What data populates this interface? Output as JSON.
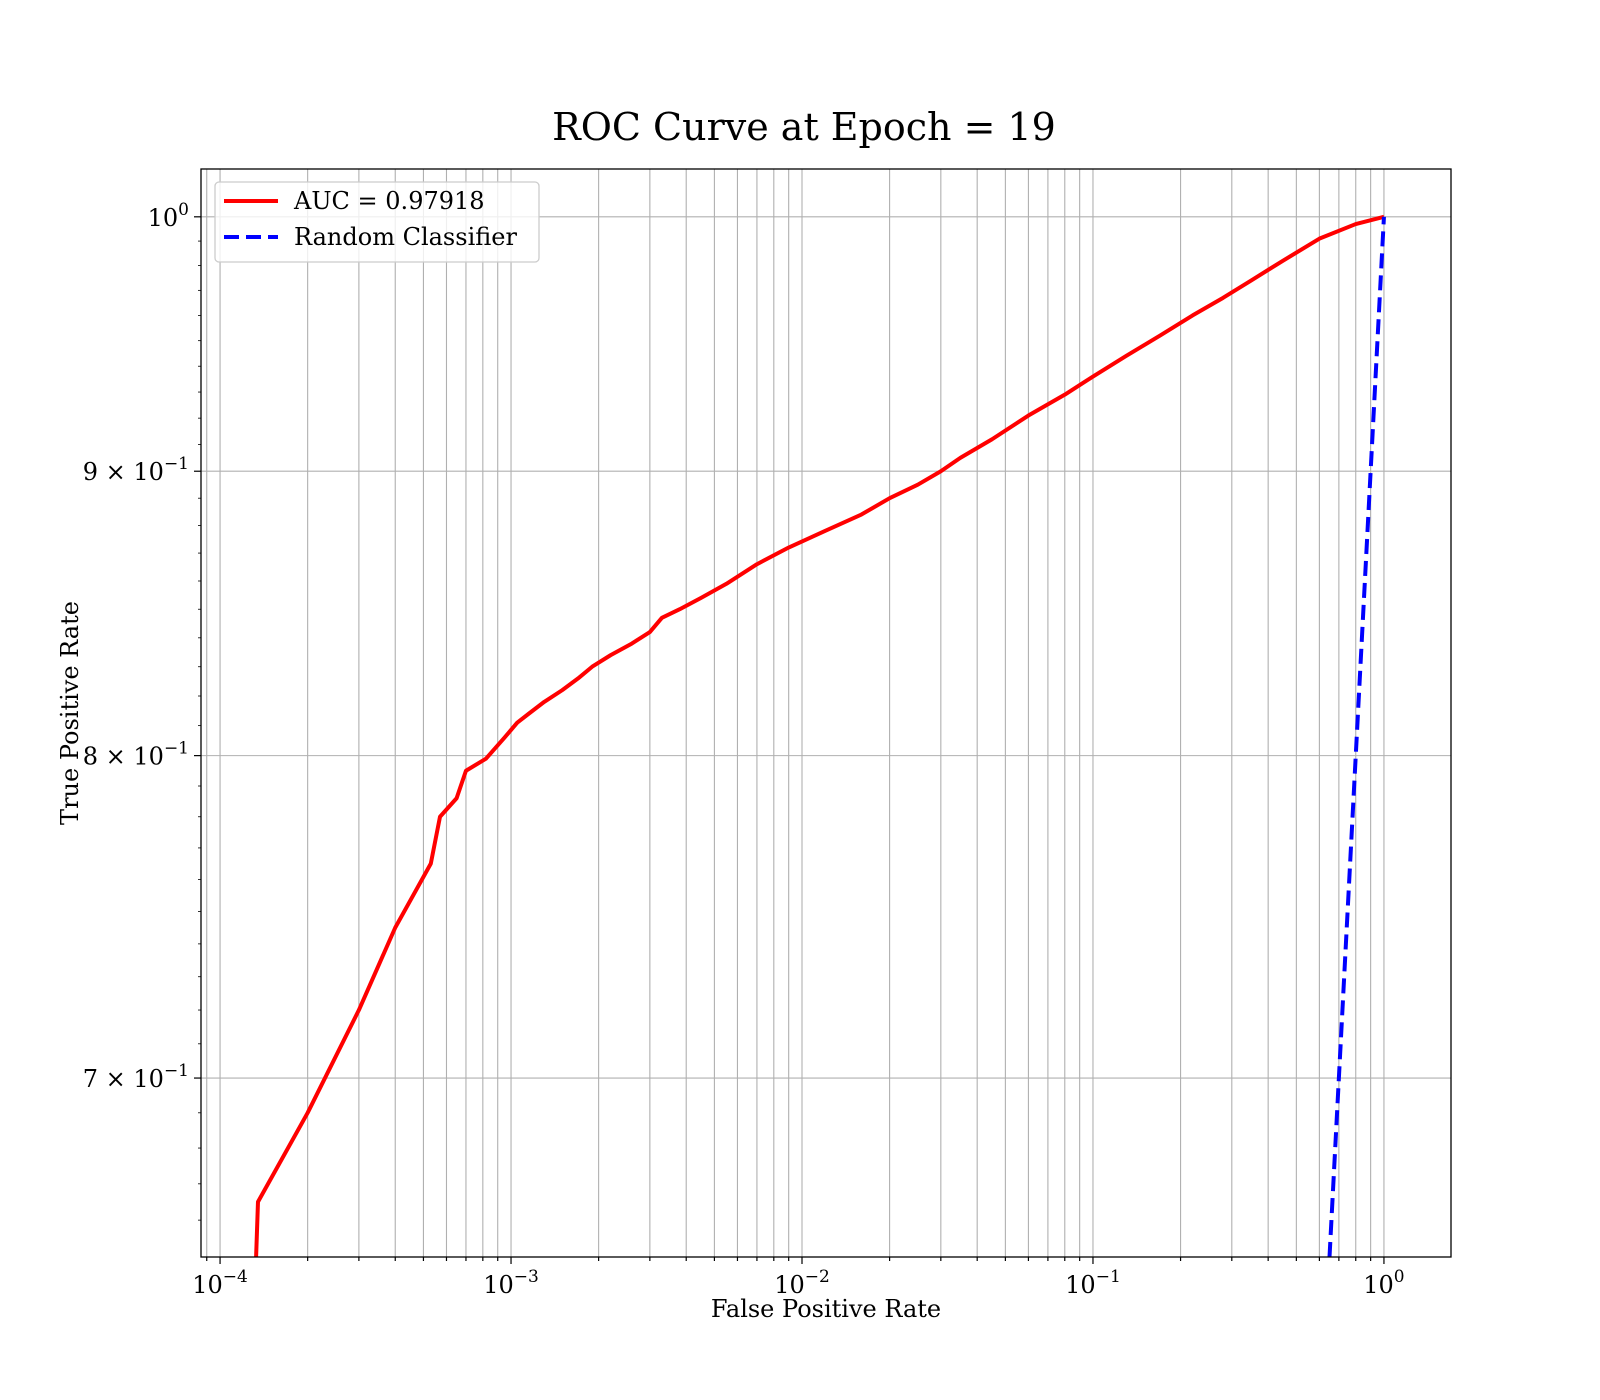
{
  "chart_data": {
    "type": "line",
    "title": "ROC Curve at Epoch = 19",
    "xlabel": "False Positive Rate",
    "ylabel": "True Positive Rate",
    "xscale": "log",
    "yscale": "log",
    "xlim": [
      8.6e-05,
      1.7
    ],
    "ylim": [
      0.65,
      1.02
    ],
    "grid": true,
    "legend_position": "top-left",
    "x_ticks": [
      {
        "value": 0.0001,
        "base": "10",
        "exp": "−4"
      },
      {
        "value": 0.001,
        "base": "10",
        "exp": "−3"
      },
      {
        "value": 0.01,
        "base": "10",
        "exp": "−2"
      },
      {
        "value": 0.1,
        "base": "10",
        "exp": "−1"
      },
      {
        "value": 1,
        "base": "10",
        "exp": "0"
      }
    ],
    "y_ticks": [
      {
        "value": 1.0,
        "base": "10",
        "exp": "0"
      },
      {
        "value": 0.9,
        "base": "9 × 10",
        "exp": "−1"
      },
      {
        "value": 0.8,
        "base": "8 × 10",
        "exp": "−1"
      },
      {
        "value": 0.7,
        "base": "7 × 10",
        "exp": "−1"
      }
    ],
    "series": [
      {
        "name": "AUC = 0.97918",
        "color": "#ff0000",
        "dash": "solid",
        "x": [
          0.000133,
          0.000135,
          0.0002,
          0.0003,
          0.0004,
          0.00053,
          0.00057,
          0.00065,
          0.0007,
          0.00082,
          0.00095,
          0.00105,
          0.00115,
          0.0013,
          0.0015,
          0.0017,
          0.0019,
          0.0022,
          0.0026,
          0.003,
          0.0033,
          0.0038,
          0.0045,
          0.0055,
          0.007,
          0.009,
          0.012,
          0.016,
          0.02,
          0.025,
          0.03,
          0.035,
          0.045,
          0.06,
          0.08,
          0.1,
          0.13,
          0.17,
          0.22,
          0.28,
          0.35,
          0.45,
          0.6,
          0.8,
          1.0
        ],
        "y": [
          0.65,
          0.665,
          0.69,
          0.72,
          0.745,
          0.765,
          0.78,
          0.786,
          0.795,
          0.799,
          0.806,
          0.811,
          0.814,
          0.818,
          0.822,
          0.826,
          0.83,
          0.834,
          0.838,
          0.842,
          0.847,
          0.85,
          0.854,
          0.859,
          0.866,
          0.872,
          0.878,
          0.884,
          0.89,
          0.895,
          0.9,
          0.905,
          0.912,
          0.921,
          0.929,
          0.936,
          0.944,
          0.952,
          0.96,
          0.967,
          0.974,
          0.982,
          0.991,
          0.997,
          1.0
        ]
      },
      {
        "name": "Random Classifier",
        "color": "#0000ff",
        "dash": "dashed",
        "x": [
          0.65,
          1.0
        ],
        "y": [
          0.65,
          1.0
        ]
      }
    ]
  }
}
